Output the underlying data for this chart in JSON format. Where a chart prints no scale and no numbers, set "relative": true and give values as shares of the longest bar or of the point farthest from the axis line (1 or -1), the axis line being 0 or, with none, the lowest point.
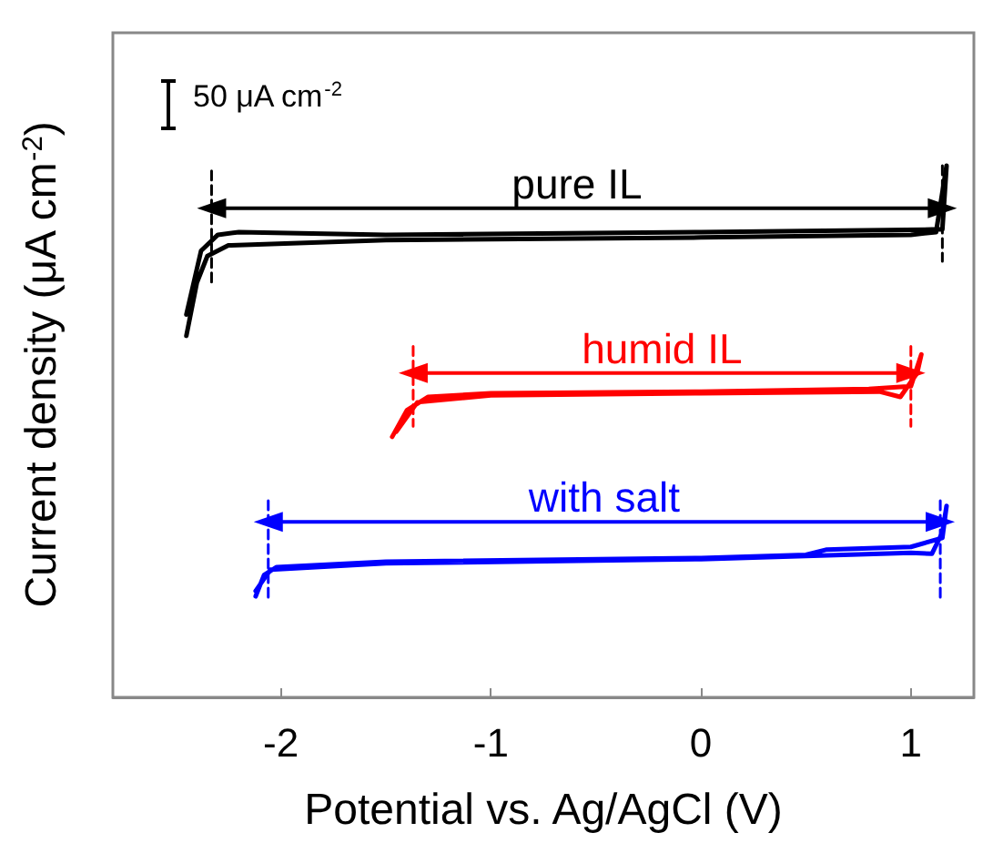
{
  "chart_data": {
    "type": "line",
    "relative": true,
    "xlabel": "Potential vs. Ag/AgCl (V)",
    "ylabel": "Current density (μA cm$^{-2}$)",
    "xlim": [
      -2.8,
      1.3
    ],
    "xticks": [
      -2,
      -1,
      0,
      1
    ],
    "grid": false,
    "legend": false,
    "marker": "none",
    "line_style": "solid",
    "annotations": [
      "50 μA cm$^{-2}$"
    ],
    "series": [
      {
        "color": "#000000",
        "x": [
          -2.45,
          -2.4,
          -2.35,
          -2.25,
          -1.5,
          0,
          1.0,
          1.12,
          1.17,
          1.15,
          1.1,
          0,
          -1.5,
          -2.2,
          -2.3,
          -2.38,
          -2.45
        ],
        "values": [
          0.68,
          0.78,
          0.83,
          0.85,
          0.86,
          0.865,
          0.87,
          0.875,
          1.0,
          0.88,
          0.88,
          0.875,
          0.87,
          0.875,
          0.87,
          0.84,
          0.72
        ]
      },
      {
        "color": "#ff0000",
        "x": [
          -1.47,
          -1.4,
          -1.3,
          -1,
          0,
          0.8,
          1.0,
          1.05,
          1.03,
          0.95,
          0.85,
          0,
          -1,
          -1.35,
          -1.45
        ],
        "values": [
          0.49,
          0.54,
          0.565,
          0.572,
          0.575,
          0.58,
          0.585,
          0.645,
          0.61,
          0.565,
          0.575,
          0.572,
          0.568,
          0.555,
          0.5
        ]
      },
      {
        "color": "#0000ff",
        "x": [
          -2.12,
          -2.08,
          -2.02,
          -1.5,
          0,
          0.5,
          0.6,
          1.0,
          1.15,
          1.17,
          1.15,
          1.1,
          1.0,
          0,
          -1.5,
          -2.05,
          -2.12
        ],
        "values": [
          0.19,
          0.23,
          0.245,
          0.255,
          0.262,
          0.268,
          0.278,
          0.283,
          0.3,
          0.36,
          0.31,
          0.27,
          0.272,
          0.26,
          0.252,
          0.24,
          0.2
        ]
      },
      {
        "name": "pure IL",
        "color": "#000000",
        "marker": "triangle",
        "x": [
          -2.33,
          1.15
        ],
        "values": [
          0.92,
          0.92
        ]
      },
      {
        "name": "humid IL",
        "color": "#ff0000",
        "marker": "triangle",
        "x": [
          -1.37,
          1.0
        ],
        "values": [
          0.61,
          0.61
        ]
      },
      {
        "name": "with salt",
        "color": "#0000ff",
        "marker": "triangle",
        "x": [
          -2.06,
          1.14
        ],
        "values": [
          0.33,
          0.33
        ]
      },
      {
        "color": "#000000",
        "line_style": "dashed",
        "x": [
          -2.33,
          -2.33
        ],
        "values": [
          0.99,
          0.78
        ]
      },
      {
        "color": "#000000",
        "line_style": "dashed",
        "x": [
          1.15,
          1.15
        ],
        "values": [
          1.0,
          0.82
        ]
      },
      {
        "color": "#ff0000",
        "line_style": "dashed",
        "x": [
          -1.37,
          -1.37
        ],
        "values": [
          0.66,
          0.51
        ]
      },
      {
        "color": "#ff0000",
        "line_style": "dashed",
        "x": [
          1.0,
          1.0
        ],
        "values": [
          0.66,
          0.51
        ]
      },
      {
        "color": "#0000ff",
        "line_style": "dashed",
        "x": [
          -2.06,
          -2.06
        ],
        "values": [
          0.37,
          0.18
        ]
      },
      {
        "color": "#0000ff",
        "line_style": "dashed",
        "x": [
          1.14,
          1.14
        ],
        "values": [
          0.37,
          0.18
        ]
      }
    ]
  }
}
